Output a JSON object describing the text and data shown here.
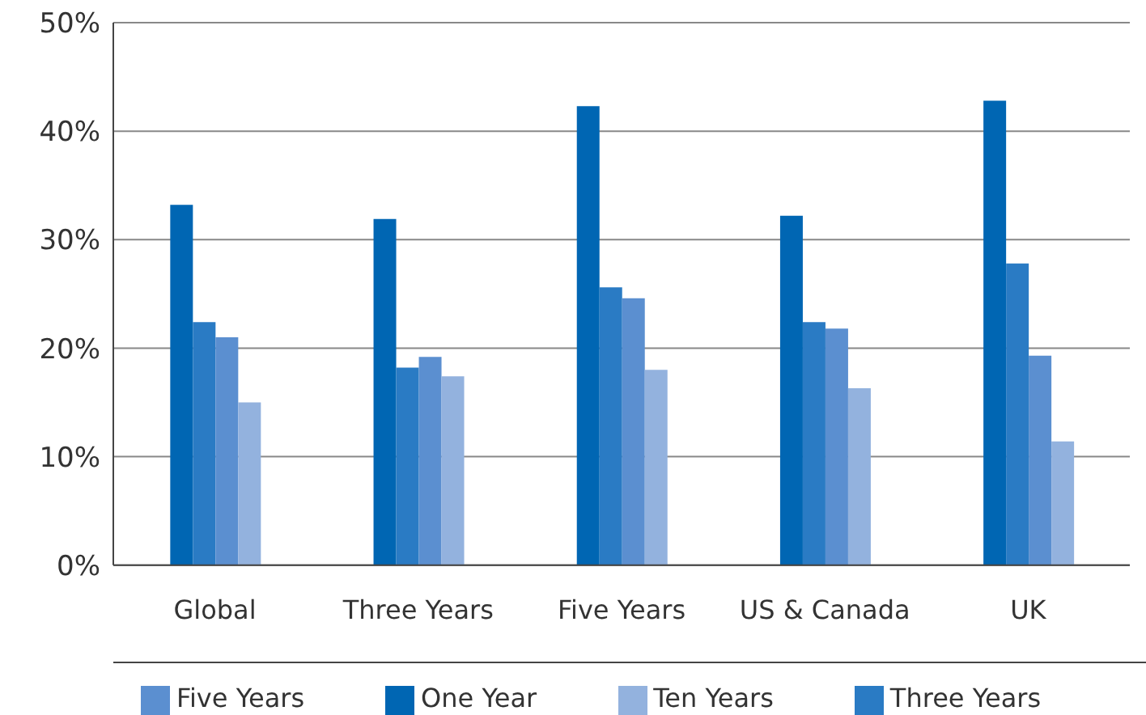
{
  "chart_data": {
    "type": "bar",
    "categories": [
      "Global",
      "Three Years",
      "Five Years",
      "US & Canada",
      "UK"
    ],
    "series": [
      {
        "name": "One Year",
        "color": "#0066b3",
        "values": [
          33.2,
          31.9,
          42.3,
          32.2,
          42.8
        ]
      },
      {
        "name": "Three Years",
        "color": "#2a7bc4",
        "values": [
          22.4,
          18.2,
          25.6,
          22.4,
          27.8
        ]
      },
      {
        "name": "Five Years",
        "color": "#5b8fd0",
        "values": [
          21.0,
          19.2,
          24.6,
          21.8,
          19.3
        ]
      },
      {
        "name": "Ten Years",
        "color": "#93b2de",
        "values": [
          15.0,
          17.4,
          18.0,
          16.3,
          11.4
        ]
      }
    ],
    "ylim": [
      0,
      50
    ],
    "yticks": [
      {
        "value": 0,
        "label": "0%"
      },
      {
        "value": 10,
        "label": "10%"
      },
      {
        "value": 20,
        "label": "20%"
      },
      {
        "value": 30,
        "label": "30%"
      },
      {
        "value": 40,
        "label": "40%"
      },
      {
        "value": 50,
        "label": "50%"
      }
    ],
    "grid": "y",
    "legend": "bottom"
  }
}
